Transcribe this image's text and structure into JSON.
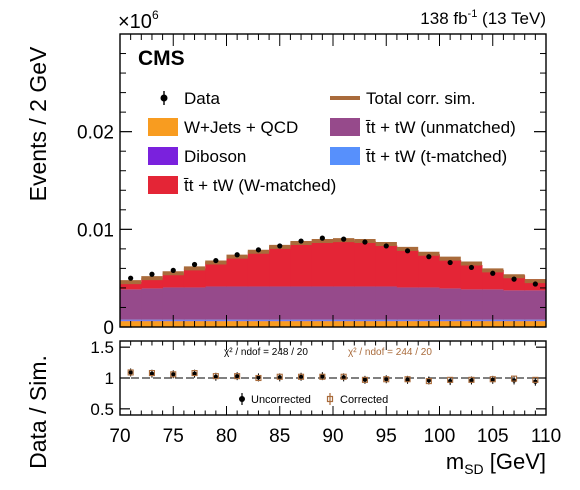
{
  "chart_data": [
    {
      "type": "bar",
      "subtype": "stacked-histogram",
      "title": "",
      "experiment_label": "CMS",
      "lumi_label": {
        "value": "138 fb",
        "exponent": "-1",
        "energy": " (13 TeV)"
      },
      "scale_label": {
        "base": "×10",
        "exponent": "6"
      },
      "ylabel": "Events / 2 GeV",
      "ylim": [
        0,
        0.03
      ],
      "yticks": [
        "0",
        "0.01",
        "0.02"
      ],
      "ytick_values": [
        0,
        0.01,
        0.02
      ],
      "grid": false,
      "legend_placement": "top",
      "bin_edges": [
        70,
        72,
        74,
        76,
        78,
        80,
        82,
        84,
        86,
        88,
        90,
        92,
        94,
        96,
        98,
        100,
        102,
        104,
        106,
        108,
        110
      ],
      "series": [
        {
          "name": "W+Jets + QCD",
          "color": "#f89c20",
          "values": [
            0.0006,
            0.0006,
            0.0006,
            0.0006,
            0.0006,
            0.0006,
            0.0006,
            0.0006,
            0.0006,
            0.0006,
            0.0006,
            0.0006,
            0.0006,
            0.0006,
            0.0006,
            0.0006,
            0.0006,
            0.0006,
            0.0006,
            0.0006
          ]
        },
        {
          "name": "Diboson",
          "color": "#7a21dd",
          "values": [
            5e-05,
            5e-05,
            5e-05,
            5e-05,
            5e-05,
            5e-05,
            5e-05,
            5e-05,
            5e-05,
            5e-05,
            5e-05,
            5e-05,
            5e-05,
            5e-05,
            5e-05,
            5e-05,
            5e-05,
            5e-05,
            5e-05,
            5e-05
          ]
        },
        {
          "name": "t̄t + tW (t-matched)",
          "color": "#5790fc",
          "values": [
            0.0001,
            0.0001,
            0.0001,
            0.0001,
            0.0001,
            0.0001,
            0.0001,
            0.0001,
            0.0001,
            0.0001,
            0.0001,
            0.0001,
            0.0001,
            0.0001,
            0.0001,
            0.0001,
            0.0001,
            0.0001,
            0.0001,
            0.0001
          ]
        },
        {
          "name": "t̄t + tW (unmatched)",
          "color": "#964a8b",
          "values": [
            0.0031,
            0.0032,
            0.0033,
            0.0033,
            0.0034,
            0.0034,
            0.0034,
            0.0034,
            0.0034,
            0.0034,
            0.0034,
            0.0034,
            0.0034,
            0.0033,
            0.0033,
            0.0032,
            0.0031,
            0.0031,
            0.003,
            0.003
          ]
        },
        {
          "name": "t̄t + tW (W-matched)",
          "color": "#e42536",
          "values": [
            0.00075,
            0.00105,
            0.00145,
            0.00195,
            0.0025,
            0.0031,
            0.0036,
            0.0041,
            0.0045,
            0.0047,
            0.0047,
            0.0046,
            0.0042,
            0.0038,
            0.0034,
            0.0029,
            0.0025,
            0.002,
            0.00155,
            0.00115
          ]
        }
      ],
      "total_sim": {
        "name": "Total corr. sim.",
        "color": "#a96b3b",
        "values": [
          0.0046,
          0.005,
          0.0055,
          0.006,
          0.0066,
          0.0072,
          0.0077,
          0.0082,
          0.0086,
          0.0088,
          0.0089,
          0.0088,
          0.0085,
          0.008,
          0.0075,
          0.007,
          0.0065,
          0.0058,
          0.0052,
          0.0047
        ]
      },
      "data": {
        "name": "Data",
        "x": [
          71,
          73,
          75,
          77,
          79,
          81,
          83,
          85,
          87,
          89,
          91,
          93,
          95,
          97,
          99,
          101,
          103,
          105,
          107,
          109
        ],
        "y": [
          0.005,
          0.0054,
          0.0058,
          0.0064,
          0.0068,
          0.0074,
          0.0079,
          0.0083,
          0.0088,
          0.0091,
          0.009,
          0.0087,
          0.0083,
          0.0078,
          0.0072,
          0.0066,
          0.0061,
          0.0055,
          0.0049,
          0.0044
        ]
      }
    },
    {
      "type": "scatter",
      "subtype": "ratio",
      "ylabel": "Data / Sim.",
      "xlabel": {
        "base": "m",
        "subscript": "SD",
        "unit": " [GeV]"
      },
      "xlim": [
        70,
        110
      ],
      "xticks": [
        "70",
        "75",
        "80",
        "85",
        "90",
        "95",
        "100",
        "105",
        "110"
      ],
      "xtick_values": [
        70,
        75,
        80,
        85,
        90,
        95,
        100,
        105,
        110
      ],
      "ylim": [
        0.4,
        1.6
      ],
      "yticks": [
        "0.5",
        "1",
        "1.5"
      ],
      "ytick_values": [
        0.5,
        1,
        1.5
      ],
      "reference_line": 1,
      "chi2_uncorrected": "χ² / ndof = 248 / 20",
      "chi2_corrected": "χ² / ndof = 244 / 20",
      "series": [
        {
          "name": "Uncorrected",
          "color": "#000000",
          "marker": "filled-circle",
          "x": [
            71,
            73,
            75,
            77,
            79,
            81,
            83,
            85,
            87,
            89,
            91,
            93,
            95,
            97,
            99,
            101,
            103,
            105,
            107,
            109
          ],
          "y": [
            1.09,
            1.07,
            1.06,
            1.07,
            1.02,
            1.03,
            1.01,
            1.01,
            1.02,
            1.03,
            1.01,
            0.97,
            0.98,
            0.97,
            0.96,
            0.95,
            0.96,
            0.97,
            0.96,
            0.94
          ]
        },
        {
          "name": "Corrected",
          "color": "#a96b3b",
          "marker": "open-square",
          "x": [
            71,
            73,
            75,
            77,
            79,
            81,
            83,
            85,
            87,
            89,
            91,
            93,
            95,
            97,
            99,
            101,
            103,
            105,
            107,
            109
          ],
          "y": [
            1.09,
            1.08,
            1.06,
            1.08,
            1.03,
            1.03,
            1.0,
            1.02,
            1.02,
            1.02,
            1.02,
            0.97,
            0.98,
            0.98,
            0.95,
            0.97,
            0.97,
            0.98,
            0.99,
            0.97
          ]
        }
      ]
    }
  ]
}
